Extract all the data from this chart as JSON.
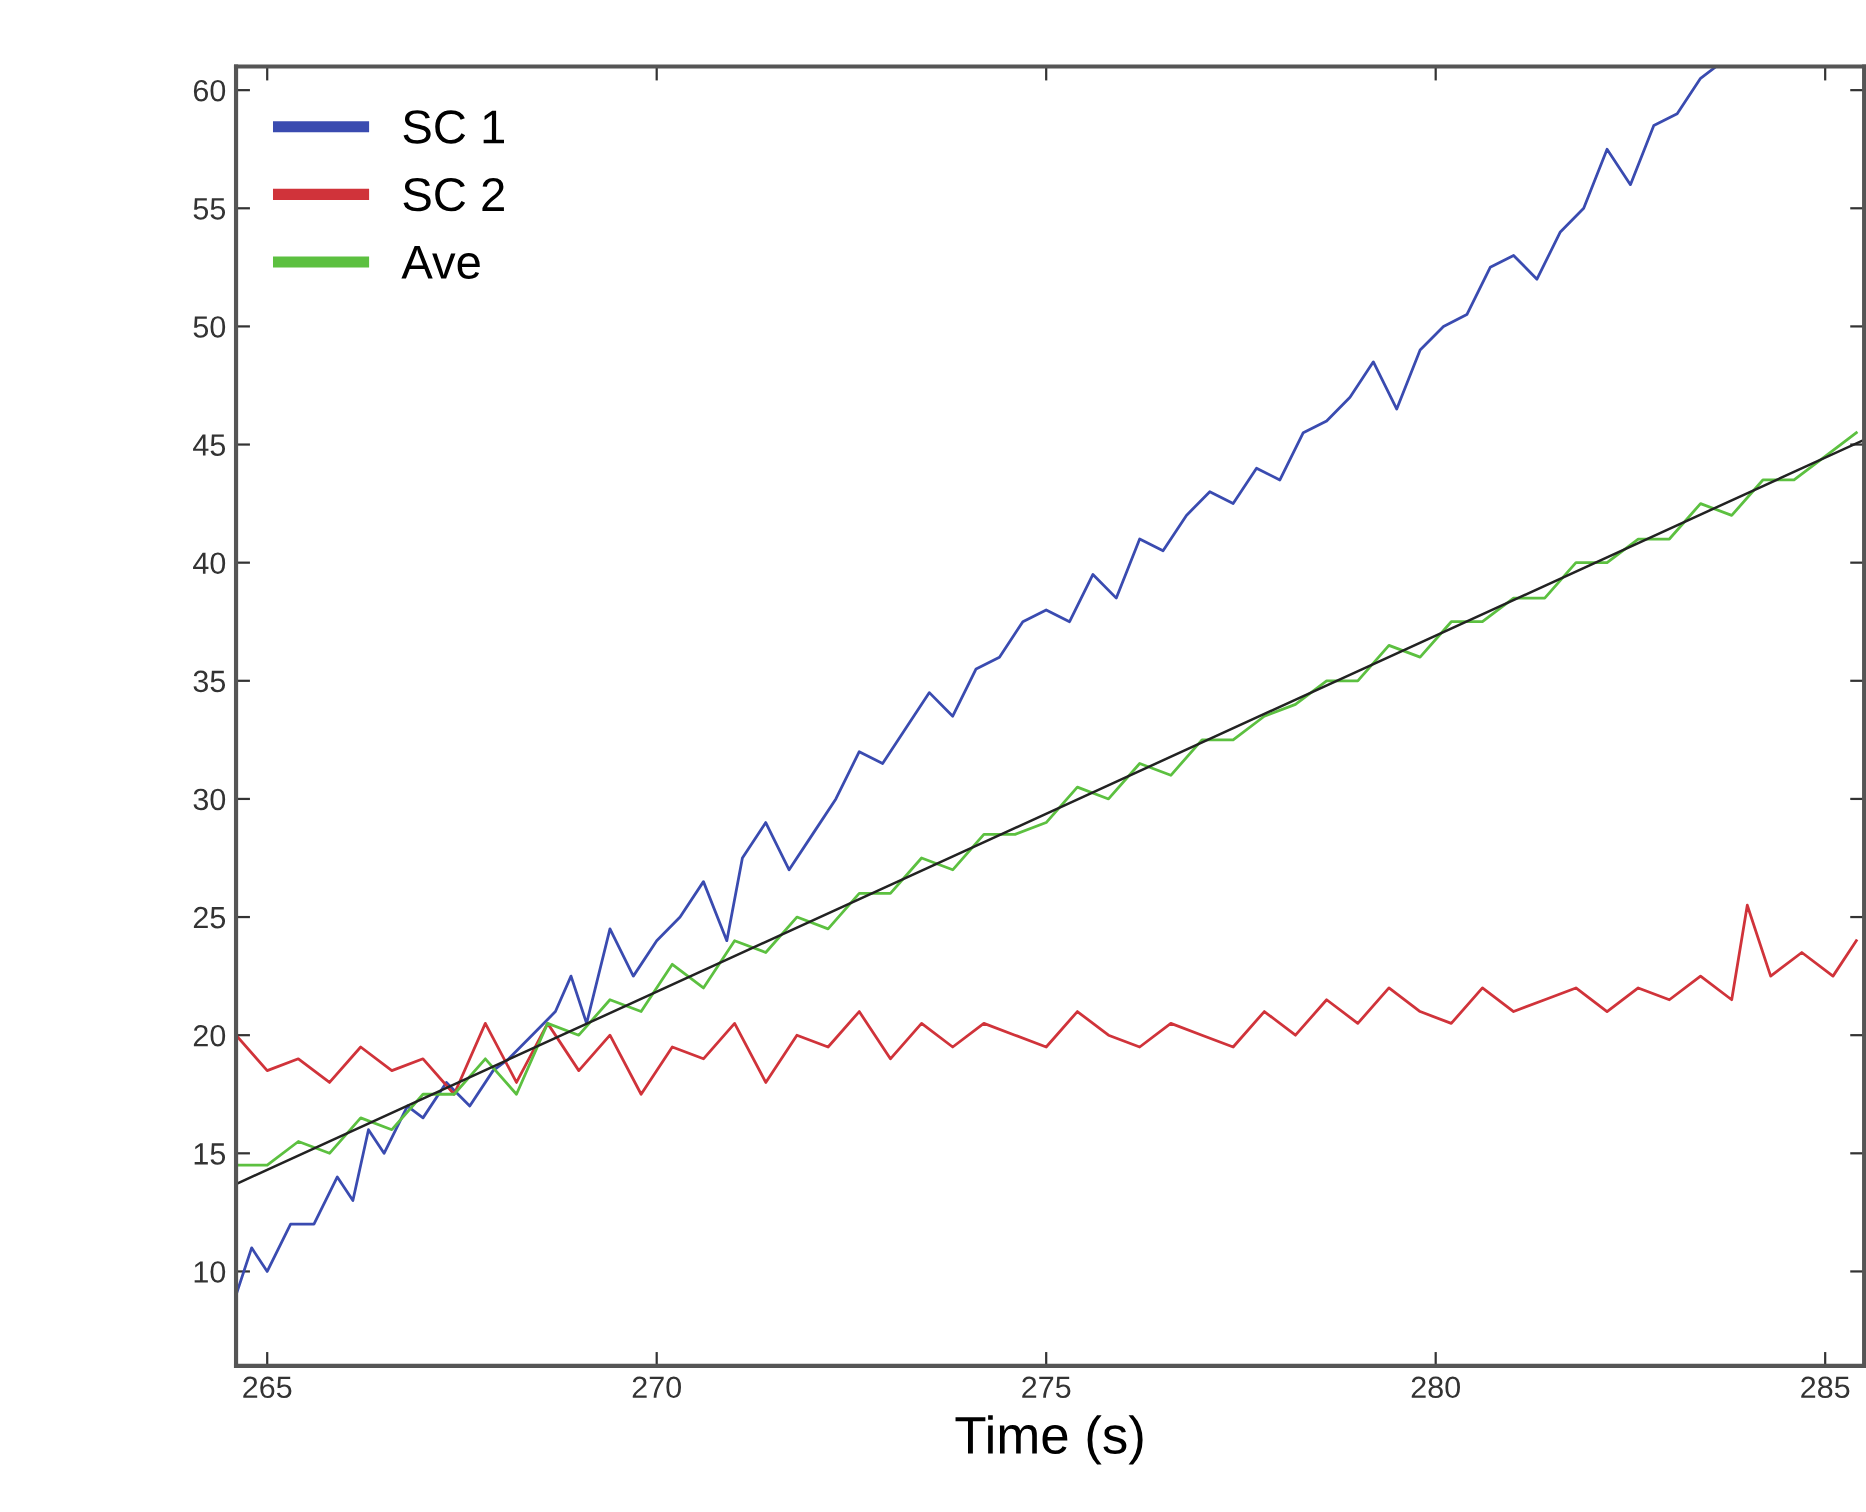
{
  "chart_data": {
    "type": "line",
    "xlabel": "Time (s)",
    "xlim": [
      264.6,
      285.5
    ],
    "ylim": [
      6,
      61
    ],
    "xticks": [
      265,
      270,
      275,
      280,
      285
    ],
    "yticks": [
      10,
      15,
      20,
      25,
      30,
      35,
      40,
      45,
      50,
      55,
      60
    ],
    "grid": false,
    "legend": "top left",
    "marker": "none",
    "line_style": "solid",
    "series": [
      {
        "name": "SC 1",
        "color": "#3a4bb0",
        "x": [
          264.6,
          264.8,
          265.0,
          265.3,
          265.6,
          265.9,
          266.1,
          266.3,
          266.5,
          266.8,
          267.0,
          267.3,
          267.6,
          267.9,
          268.1,
          268.4,
          268.7,
          268.9,
          269.1,
          269.4,
          269.7,
          270.0,
          270.3,
          270.6,
          270.9,
          271.1,
          271.4,
          271.7,
          272.0,
          272.3,
          272.6,
          272.9,
          273.2,
          273.5,
          273.8,
          274.1,
          274.4,
          274.7,
          275.0,
          275.3,
          275.6,
          275.9,
          276.2,
          276.5,
          276.8,
          277.1,
          277.4,
          277.7,
          278.0,
          278.3,
          278.6,
          278.9,
          279.2,
          279.5,
          279.8,
          280.1,
          280.4,
          280.7,
          281.0,
          281.3,
          281.6,
          281.9,
          282.2,
          282.5,
          282.8,
          283.1,
          283.4,
          283.6
        ],
        "values": [
          9,
          11,
          10,
          12,
          12,
          14,
          13,
          16,
          15,
          17,
          16.5,
          18,
          17,
          18.5,
          19,
          20,
          21,
          22.5,
          20.5,
          24.5,
          22.5,
          24,
          25,
          26.5,
          24,
          27.5,
          29,
          27,
          28.5,
          30,
          32,
          31.5,
          33,
          34.5,
          33.5,
          35.5,
          36,
          37.5,
          38,
          37.5,
          39.5,
          38.5,
          41,
          40.5,
          42,
          43,
          42.5,
          44,
          43.5,
          45.5,
          46,
          47,
          48.5,
          46.5,
          49,
          50,
          50.5,
          52.5,
          53,
          52,
          54,
          55,
          57.5,
          56,
          58.5,
          59,
          60.5,
          61
        ]
      },
      {
        "name": "SC 2",
        "color": "#d0333a",
        "x": [
          264.6,
          265.0,
          265.4,
          265.8,
          266.2,
          266.6,
          267.0,
          267.4,
          267.8,
          268.2,
          268.6,
          269.0,
          269.4,
          269.8,
          270.2,
          270.6,
          271.0,
          271.4,
          271.8,
          272.2,
          272.6,
          273.0,
          273.4,
          273.8,
          274.2,
          274.6,
          275.0,
          275.4,
          275.8,
          276.2,
          276.6,
          277.0,
          277.4,
          277.8,
          278.2,
          278.6,
          279.0,
          279.4,
          279.8,
          280.2,
          280.6,
          281.0,
          281.4,
          281.8,
          282.2,
          282.6,
          283.0,
          283.4,
          283.8,
          284.0,
          284.3,
          284.7,
          285.1,
          285.4
        ],
        "values": [
          20,
          18.5,
          19,
          18,
          19.5,
          18.5,
          19,
          17.5,
          20.5,
          18,
          20.5,
          18.5,
          20,
          17.5,
          19.5,
          19,
          20.5,
          18,
          20,
          19.5,
          21,
          19,
          20.5,
          19.5,
          20.5,
          20,
          19.5,
          21,
          20,
          19.5,
          20.5,
          20,
          19.5,
          21,
          20,
          21.5,
          20.5,
          22,
          21,
          20.5,
          22,
          21,
          21.5,
          22,
          21,
          22,
          21.5,
          22.5,
          21.5,
          25.5,
          22.5,
          23.5,
          22.5,
          24
        ]
      },
      {
        "name": "Ave",
        "color": "#5cc040",
        "x": [
          264.6,
          265.0,
          265.4,
          265.8,
          266.2,
          266.6,
          267.0,
          267.4,
          267.8,
          268.2,
          268.6,
          269.0,
          269.4,
          269.8,
          270.2,
          270.6,
          271.0,
          271.4,
          271.8,
          272.2,
          272.6,
          273.0,
          273.4,
          273.8,
          274.2,
          274.6,
          275.0,
          275.4,
          275.8,
          276.2,
          276.6,
          277.0,
          277.4,
          277.8,
          278.2,
          278.6,
          279.0,
          279.4,
          279.8,
          280.2,
          280.6,
          281.0,
          281.4,
          281.8,
          282.2,
          282.6,
          283.0,
          283.4,
          283.8,
          284.2,
          284.6,
          285.0,
          285.4
        ],
        "values": [
          14.5,
          14.5,
          15.5,
          15,
          16.5,
          16,
          17.5,
          17.5,
          19,
          17.5,
          20.5,
          20,
          21.5,
          21,
          23,
          22,
          24,
          23.5,
          25,
          24.5,
          26,
          26,
          27.5,
          27,
          28.5,
          28.5,
          29,
          30.5,
          30,
          31.5,
          31,
          32.5,
          32.5,
          33.5,
          34,
          35,
          35,
          36.5,
          36,
          37.5,
          37.5,
          38.5,
          38.5,
          40,
          40,
          41,
          41,
          42.5,
          42,
          43.5,
          43.5,
          44.5,
          45.5
        ]
      },
      {
        "type": "line",
        "color": "#222222",
        "x": [
          264.6,
          285.5
        ],
        "values": [
          13.7,
          45.2
        ]
      }
    ]
  }
}
